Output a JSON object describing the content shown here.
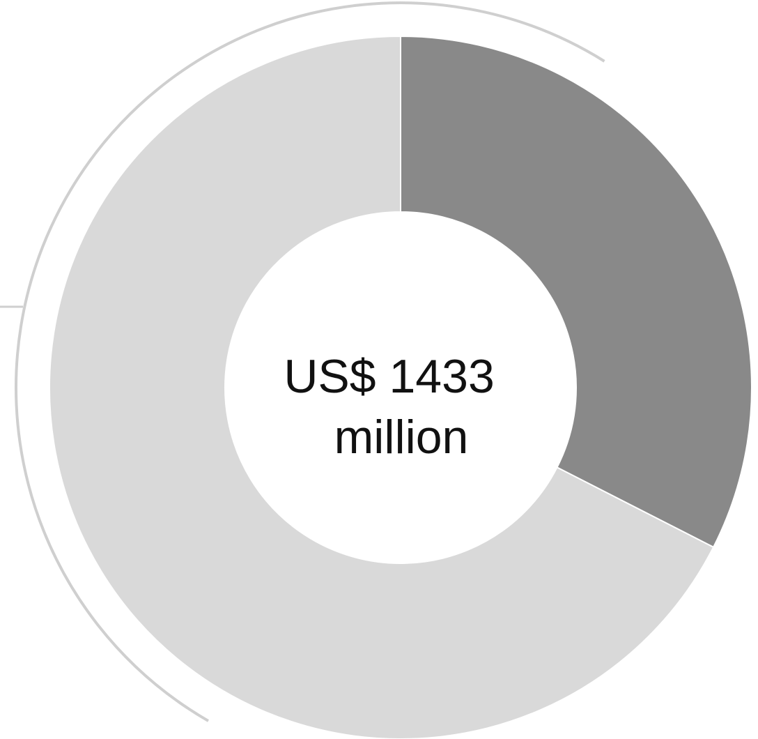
{
  "chart_data": {
    "type": "pie",
    "variant": "donut",
    "slices": [
      {
        "value": 32.5,
        "color": "#898989"
      },
      {
        "value": 67.5,
        "color": "#d9d9d9"
      }
    ],
    "center_label": [
      "US$ 1433",
      "million"
    ],
    "outer_arc_color": "#cfcfcf",
    "background": "#ffffff"
  }
}
